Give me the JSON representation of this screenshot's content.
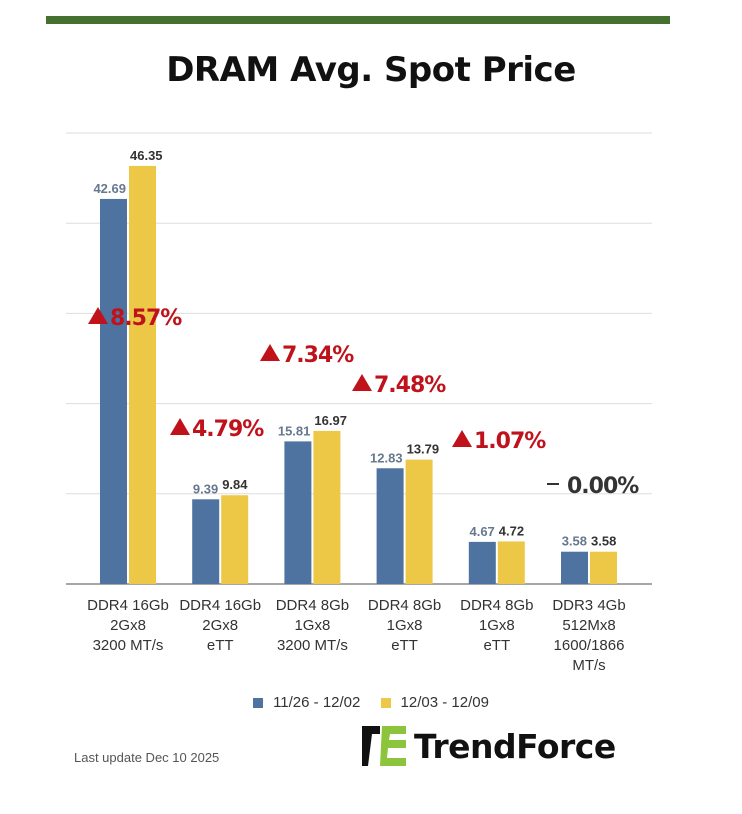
{
  "title": "DRAM Avg. Spot Price",
  "colors": {
    "accent_bar": "#44712f",
    "series1": "#4f73a0",
    "series2": "#ecc846",
    "change_up": "#c0121b",
    "change_flat": "#333333"
  },
  "chart_data": {
    "type": "bar",
    "title": "DRAM Avg. Spot Price",
    "categories": [
      [
        "DDR4 16Gb",
        "2Gx8",
        "3200 MT/s"
      ],
      [
        "DDR4 16Gb",
        "2Gx8",
        "eTT"
      ],
      [
        "DDR4 8Gb",
        "1Gx8",
        "3200 MT/s"
      ],
      [
        "DDR4 8Gb",
        "1Gx8",
        "eTT"
      ],
      [
        "DDR4 8Gb",
        "1Gx8",
        "eTT"
      ],
      [
        "DDR3 4Gb",
        "512Mx8",
        "1600/1866",
        "MT/s"
      ]
    ],
    "series": [
      {
        "name": "11/26 - 12/02",
        "values": [
          42.69,
          9.39,
          15.81,
          12.83,
          4.67,
          3.58
        ],
        "labels": [
          "42.69",
          "9.39",
          "15.81",
          "12.83",
          "4.67",
          "3.58"
        ]
      },
      {
        "name": "12/03 - 12/09",
        "values": [
          46.35,
          9.84,
          16.97,
          13.79,
          4.72,
          3.58
        ],
        "labels": [
          "46.35",
          "9.84",
          "16.97",
          "13.79",
          "4.72",
          "3.58"
        ]
      }
    ],
    "changes": [
      {
        "direction": "up",
        "text": "8.57%"
      },
      {
        "direction": "up",
        "text": "4.79%"
      },
      {
        "direction": "up",
        "text": "7.34%"
      },
      {
        "direction": "up",
        "text": "7.48%"
      },
      {
        "direction": "up",
        "text": "1.07%"
      },
      {
        "direction": "flat",
        "text": "0.00%"
      }
    ],
    "ylim": [
      0,
      50
    ],
    "yticks": [
      0,
      10,
      20,
      30,
      40,
      50
    ],
    "ytick_labels_shown": false,
    "grid": true,
    "legend": "bottom",
    "xlabel": "",
    "ylabel": ""
  },
  "legend": {
    "items": [
      "11/26 - 12/02",
      "12/03 - 12/09"
    ]
  },
  "footer": {
    "last_update": "Last update Dec 10 2025"
  },
  "logo": {
    "text": "TrendForce"
  },
  "watermark": "TrendForce"
}
